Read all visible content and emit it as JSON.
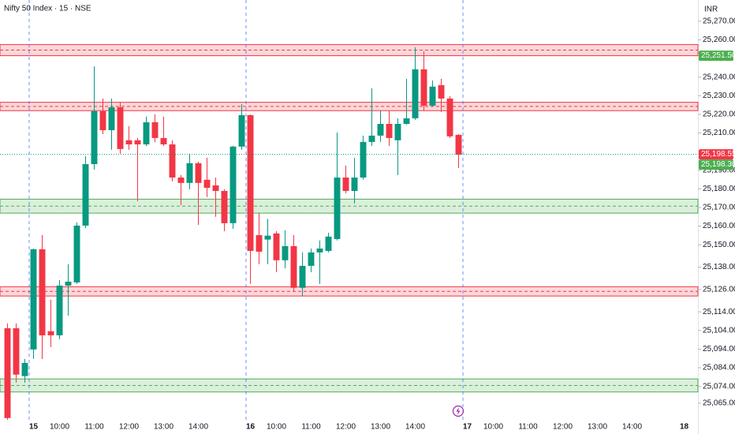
{
  "chart_data": {
    "type": "candlestick",
    "title": "Nifty 50 Index · 15 · NSE",
    "currency": "INR",
    "up_color": "#089981",
    "down_color": "#f23645",
    "xlim": [
      -0.864,
      79.59
    ],
    "ylim": [
      25055,
      25281.4
    ],
    "xticks": [
      {
        "value": 3,
        "label": "15"
      },
      {
        "value": 6,
        "label": "10:00"
      },
      {
        "value": 10,
        "label": "11:00"
      },
      {
        "value": 14,
        "label": "12:00"
      },
      {
        "value": 18,
        "label": "13:00"
      },
      {
        "value": 22,
        "label": "14:00"
      },
      {
        "value": 28,
        "label": "16"
      },
      {
        "value": 31,
        "label": "10:00"
      },
      {
        "value": 35,
        "label": "11:00"
      },
      {
        "value": 39,
        "label": "12:00"
      },
      {
        "value": 43,
        "label": "13:00"
      },
      {
        "value": 47,
        "label": "14:00"
      },
      {
        "value": 53,
        "label": "17"
      },
      {
        "value": 56,
        "label": "10:00"
      },
      {
        "value": 60,
        "label": "11:00"
      },
      {
        "value": 64,
        "label": "12:00"
      },
      {
        "value": 68,
        "label": "13:00"
      },
      {
        "value": 72,
        "label": "14:00"
      },
      {
        "value": 78,
        "label": "18"
      }
    ],
    "yticks": [
      {
        "value": 25270,
        "label": "25,270.00"
      },
      {
        "value": 25260,
        "label": "25,260.00"
      },
      {
        "value": 25240,
        "label": "25,240.00"
      },
      {
        "value": 25230,
        "label": "25,230.00"
      },
      {
        "value": 25220,
        "label": "25,220.00"
      },
      {
        "value": 25210,
        "label": "25,210.00"
      },
      {
        "value": 25190,
        "label": "25,190.00"
      },
      {
        "value": 25180,
        "label": "25,180.00"
      },
      {
        "value": 25170,
        "label": "25,170.00"
      },
      {
        "value": 25160,
        "label": "25,160.00"
      },
      {
        "value": 25150,
        "label": "25,150.00"
      },
      {
        "value": 25138,
        "label": "25,138.00"
      },
      {
        "value": 25126,
        "label": "25,126.00"
      },
      {
        "value": 25114,
        "label": "25,114.00"
      },
      {
        "value": 25104,
        "label": "25,104.00"
      },
      {
        "value": 25094,
        "label": "25,094.00"
      },
      {
        "value": 25084,
        "label": "25,084.00"
      },
      {
        "value": 25074,
        "label": "25,074.00"
      },
      {
        "value": 25065,
        "label": "25,065.00"
      }
    ],
    "open": [
      25105.2,
      25105.2,
      25079.5,
      25093.8,
      25147.6,
      25103.6,
      25101.4,
      25128.1,
      25129.8,
      25160.3,
      25193.3,
      25221.7,
      25211.5,
      25223.8,
      25206.1,
      25206.1,
      25203.9,
      25215.8,
      25207.3,
      25203.9,
      25186.1,
      25183.2,
      25193.8,
      25184.9,
      25181.9,
      25178.9,
      25161.6,
      25202.7,
      25219.6,
      25155.2,
      25152.8,
      25156.1,
      25141.7,
      25149.3,
      25126.9,
      25138.7,
      25145.9,
      25146.7,
      25153.1,
      25186.1,
      25178.9,
      25186.1,
      25205.2,
      25208.6,
      25214.9,
      25206.1,
      25214.9,
      25217.9,
      25244.2,
      25224.7,
      25235.7,
      25228.5,
      25209.0
    ],
    "high": [
      25107.8,
      25107.8,
      25088.7,
      25148.0,
      25155.2,
      25120.5,
      25131.1,
      25139.6,
      25162.0,
      25197.6,
      25245.8,
      25228.5,
      25228.5,
      25226.4,
      25213.7,
      25207.3,
      25218.8,
      25220.0,
      25218.8,
      25206.0,
      25187.4,
      25198.9,
      25194.6,
      25196.7,
      25186.1,
      25179.8,
      25203.1,
      25225.5,
      25220.0,
      25167.1,
      25163.9,
      25157.3,
      25157.8,
      25155.2,
      25145.9,
      25148.0,
      25152.3,
      25156.5,
      25210.3,
      25192.5,
      25196.7,
      25208.6,
      25234.0,
      25222.1,
      25222.1,
      25217.9,
      25239.1,
      25256.0,
      25253.9,
      25238.2,
      25239.1,
      25229.8,
      25209.4
    ],
    "low": [
      25056.1,
      25076.0,
      25076.0,
      25088.7,
      25088.7,
      25095.1,
      25099.3,
      25112.0,
      25129.0,
      25159.0,
      25190.4,
      25209.4,
      25201.0,
      25198.9,
      25201.0,
      25173.4,
      25203.0,
      25205.0,
      25203.0,
      25184.0,
      25171.3,
      25179.8,
      25160.7,
      25175.6,
      25165.0,
      25157.3,
      25158.6,
      25201.0,
      25129.0,
      25139.6,
      25139.6,
      25135.3,
      25137.4,
      25124.8,
      25122.6,
      25135.3,
      25129.0,
      25145.9,
      25152.3,
      25177.7,
      25172.2,
      25184.9,
      25203.1,
      25205.2,
      25203.1,
      25187.4,
      25214.5,
      25217.1,
      25222.1,
      25224.3,
      25221.3,
      25207.3,
      25191.2
    ],
    "close": [
      25057.0,
      25080.3,
      25086.6,
      25147.6,
      25101.4,
      25101.4,
      25128.1,
      25130.2,
      25160.3,
      25193.3,
      25221.7,
      25211.5,
      25223.8,
      25201.4,
      25203.9,
      25203.9,
      25215.8,
      25207.3,
      25203.9,
      25186.1,
      25183.2,
      25193.8,
      25183.2,
      25180.6,
      25178.9,
      25161.6,
      25202.7,
      25219.6,
      25146.7,
      25146.3,
      25154.9,
      25141.7,
      25149.3,
      25126.9,
      25138.7,
      25145.9,
      25148.0,
      25154.4,
      25186.1,
      25178.9,
      25186.1,
      25205.2,
      25208.6,
      25214.9,
      25207.3,
      25214.9,
      25217.9,
      25244.2,
      25224.7,
      25234.9,
      25228.5,
      25208.2,
      25198.4
    ],
    "zones": [
      {
        "low": 25251.5,
        "high": 25257.5,
        "color": "#f23645"
      },
      {
        "low": 25222.0,
        "high": 25226.5,
        "color": "#f23645"
      },
      {
        "low": 25167.0,
        "high": 25174.5,
        "color": "#4caf50"
      },
      {
        "low": 25122.5,
        "high": 25127.5,
        "color": "#f23645"
      },
      {
        "low": 25071.0,
        "high": 25078.0,
        "color": "#4caf50"
      }
    ],
    "last_price_color": "#089981",
    "price_labels": [
      {
        "value": 25251.5,
        "label": "25,251.50",
        "color": "#4caf50"
      },
      {
        "value": 25198.55,
        "label": "25,198.55",
        "color": "#f23645"
      },
      {
        "value": 25198.3,
        "label": "25,198.30",
        "color": "#4caf50"
      }
    ]
  }
}
